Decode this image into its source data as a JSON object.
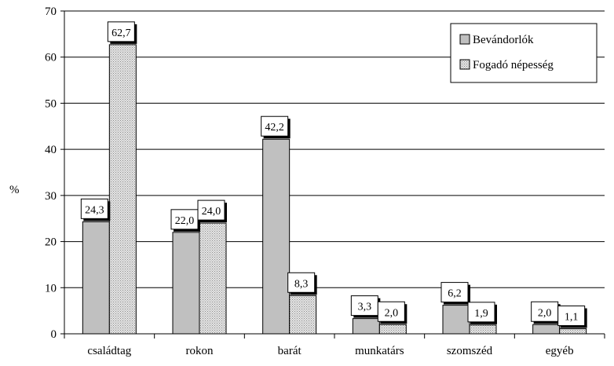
{
  "chart_data": {
    "type": "bar",
    "categories": [
      "családtag",
      "rokon",
      "barát",
      "munkatárs",
      "szomszéd",
      "egyéb"
    ],
    "series": [
      {
        "name": "Bevándorlók",
        "values": [
          24.3,
          22.0,
          42.2,
          3.3,
          6.2,
          2.0
        ],
        "labels": [
          "24,3",
          "22,0",
          "42,2",
          "3,3",
          "6,2",
          "2,0"
        ],
        "color": "#c0c0c0",
        "pattern": "solid"
      },
      {
        "name": "Fogadó népesség",
        "values": [
          62.7,
          24.0,
          8.3,
          2.0,
          1.9,
          1.1
        ],
        "labels": [
          "62,7",
          "24,0",
          "8,3",
          "2,0",
          "1,9",
          "1,1"
        ],
        "color": "#c0c0c0",
        "pattern": "dotted"
      }
    ],
    "title": "",
    "xlabel": "",
    "ylabel": "%",
    "ylim": [
      0,
      70
    ],
    "yticks": [
      0,
      10,
      20,
      30,
      40,
      50,
      60,
      70
    ],
    "grid": true,
    "legend_position": "top-right"
  }
}
